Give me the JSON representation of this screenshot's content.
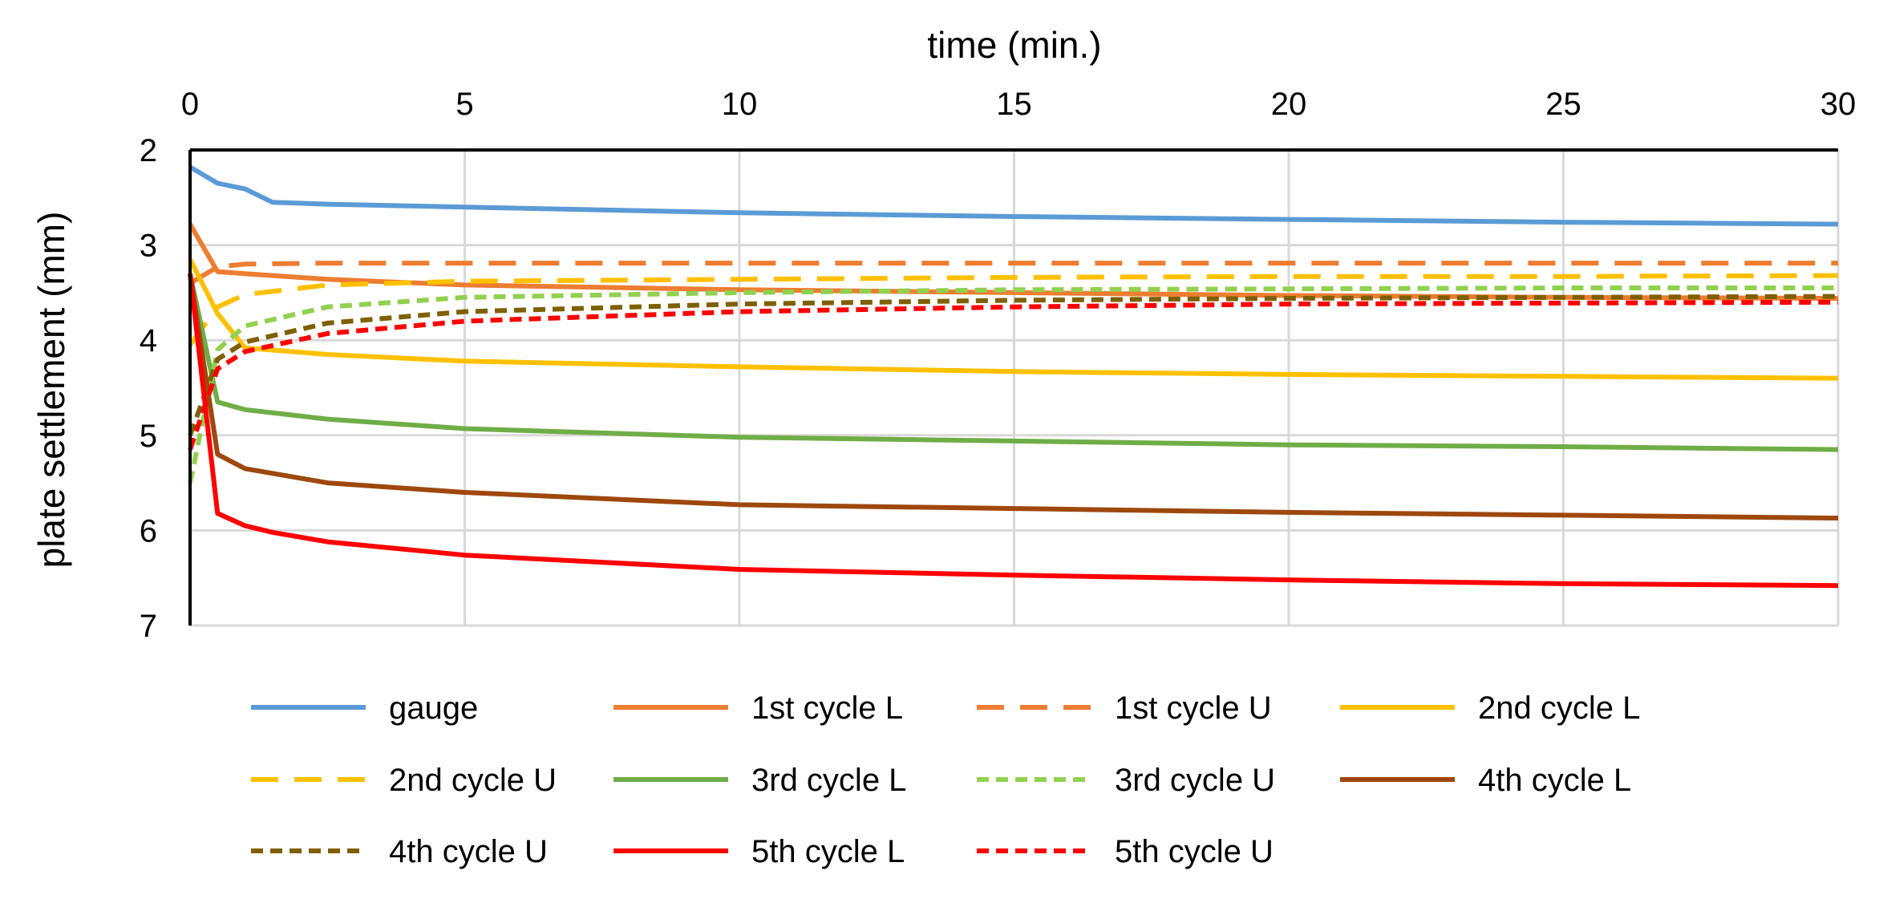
{
  "chart_data": {
    "type": "line",
    "title": "",
    "xlabel": "time (min.)",
    "ylabel": "plate settlement (mm)",
    "xlim": [
      0,
      30
    ],
    "ylim": [
      2,
      7
    ],
    "y_inverted": true,
    "x_axis_position": "top",
    "xticks": [
      0,
      5,
      10,
      15,
      20,
      25,
      30
    ],
    "yticks": [
      2,
      3,
      4,
      5,
      6,
      7
    ],
    "grid": true,
    "legend_position": "bottom",
    "series": [
      {
        "name": "gauge",
        "color": "#5B9BD5",
        "dash": "solid",
        "x": [
          0,
          0.5,
          1,
          1.5,
          2.5,
          5,
          10,
          15,
          20,
          25,
          30
        ],
        "y": [
          2.18,
          2.35,
          2.41,
          2.55,
          2.57,
          2.6,
          2.66,
          2.7,
          2.73,
          2.76,
          2.78
        ]
      },
      {
        "name": "1st cycle L",
        "color": "#ED7D31",
        "dash": "solid",
        "x": [
          0,
          0.5,
          1,
          2.5,
          5,
          10,
          15,
          20,
          25,
          30
        ],
        "y": [
          2.78,
          3.28,
          3.3,
          3.36,
          3.42,
          3.47,
          3.5,
          3.53,
          3.55,
          3.56
        ]
      },
      {
        "name": "1st cycle U",
        "color": "#ED7D31",
        "dash": "dash",
        "x": [
          0,
          0.5,
          1,
          2.5,
          5,
          10,
          15,
          20,
          25,
          30
        ],
        "y": [
          3.4,
          3.23,
          3.2,
          3.19,
          3.19,
          3.19,
          3.19,
          3.19,
          3.19,
          3.19
        ]
      },
      {
        "name": "2nd cycle L",
        "color": "#FFC000",
        "dash": "solid",
        "x": [
          0,
          0.5,
          1,
          2.5,
          5,
          10,
          15,
          20,
          25,
          30
        ],
        "y": [
          3.15,
          3.72,
          4.08,
          4.15,
          4.22,
          4.28,
          4.33,
          4.36,
          4.38,
          4.4
        ]
      },
      {
        "name": "2nd cycle U",
        "color": "#FFC000",
        "dash": "dash",
        "x": [
          0,
          0.5,
          1,
          2.5,
          5,
          10,
          15,
          20,
          25,
          30
        ],
        "y": [
          4.05,
          3.65,
          3.52,
          3.42,
          3.38,
          3.36,
          3.34,
          3.33,
          3.33,
          3.32
        ]
      },
      {
        "name": "3rd cycle L",
        "color": "#70AD47",
        "dash": "solid",
        "x": [
          0,
          0.5,
          1,
          2.5,
          5,
          10,
          15,
          20,
          25,
          30
        ],
        "y": [
          3.3,
          4.65,
          4.73,
          4.83,
          4.93,
          5.02,
          5.06,
          5.1,
          5.12,
          5.15
        ]
      },
      {
        "name": "3rd cycle U",
        "color": "#92D050",
        "dash": "dot",
        "x": [
          0,
          0.5,
          1,
          2.5,
          5,
          10,
          15,
          20,
          25,
          30
        ],
        "y": [
          5.5,
          4.1,
          3.85,
          3.65,
          3.55,
          3.5,
          3.47,
          3.46,
          3.45,
          3.45
        ]
      },
      {
        "name": "4th cycle L",
        "color": "#9E480E",
        "dash": "solid",
        "x": [
          0,
          0.5,
          1,
          2.5,
          5,
          10,
          15,
          20,
          25,
          30
        ],
        "y": [
          3.3,
          5.2,
          5.35,
          5.5,
          5.6,
          5.73,
          5.77,
          5.81,
          5.84,
          5.87
        ]
      },
      {
        "name": "4th cycle U",
        "color": "#7F6000",
        "dash": "dot",
        "x": [
          0,
          0.5,
          1,
          2.5,
          5,
          10,
          15,
          20,
          25,
          30
        ],
        "y": [
          5.0,
          4.2,
          4.02,
          3.82,
          3.7,
          3.62,
          3.58,
          3.56,
          3.55,
          3.54
        ]
      },
      {
        "name": "5th cycle L",
        "color": "#FF0000",
        "dash": "solid",
        "x": [
          0,
          0.5,
          1,
          1.5,
          2.5,
          5,
          10,
          15,
          20,
          25,
          30
        ],
        "y": [
          3.3,
          5.82,
          5.95,
          6.02,
          6.12,
          6.26,
          6.41,
          6.47,
          6.52,
          6.56,
          6.58
        ]
      },
      {
        "name": "5th cycle U",
        "color": "#FF0000",
        "dash": "dot",
        "x": [
          0,
          0.5,
          1,
          2.5,
          5,
          10,
          15,
          20,
          25,
          30
        ],
        "y": [
          5.15,
          4.3,
          4.12,
          3.93,
          3.8,
          3.7,
          3.65,
          3.62,
          3.61,
          3.6
        ]
      }
    ]
  }
}
